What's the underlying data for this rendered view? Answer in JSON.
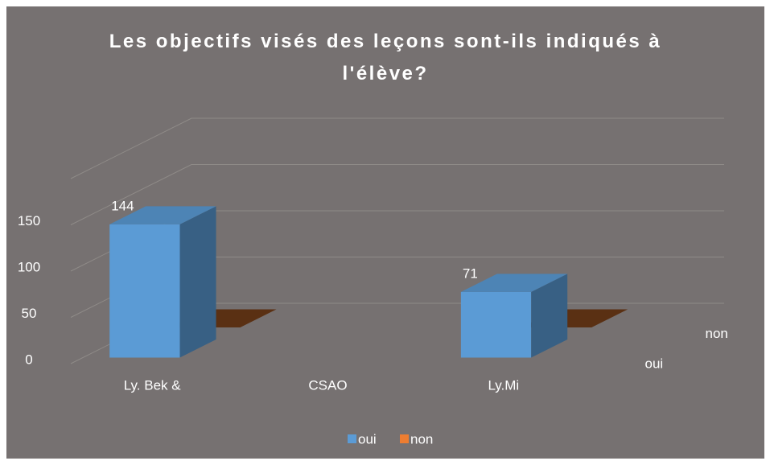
{
  "chart_data": {
    "type": "bar3d",
    "title": "Les objectifs visés des leçons sont-ils indiqués à l'élève?",
    "categories": [
      "Ly. Bek &",
      "CSAO",
      "Ly.Mi"
    ],
    "series": [
      {
        "name": "oui",
        "color": "#5b9bd5",
        "values": [
          144,
          null,
          71
        ]
      },
      {
        "name": "non",
        "color": "#ed7d31",
        "values": [
          0,
          null,
          0
        ]
      }
    ],
    "ylim": [
      0,
      200
    ],
    "yticks": [
      0,
      50,
      100,
      150
    ],
    "grid": true,
    "legend": "bottom"
  }
}
